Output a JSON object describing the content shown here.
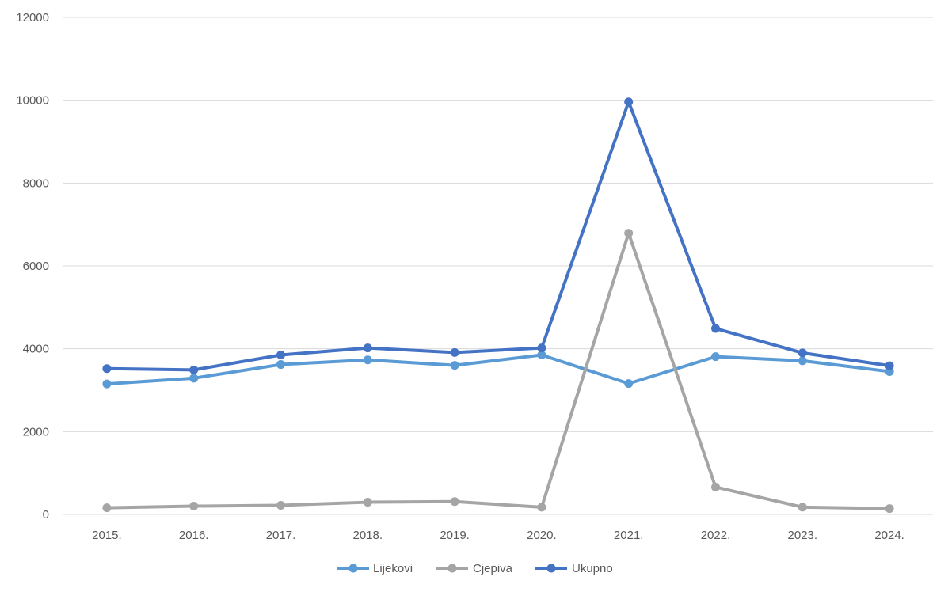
{
  "chart_data": {
    "type": "line",
    "categories": [
      "2015.",
      "2016.",
      "2017.",
      "2018.",
      "2019.",
      "2020.",
      "2021.",
      "2022.",
      "2023.",
      "2024."
    ],
    "series": [
      {
        "name": "Lijekovi",
        "color": "#5B9BD5",
        "values": [
          3150,
          3290,
          3620,
          3730,
          3600,
          3850,
          3160,
          3810,
          3710,
          3450
        ]
      },
      {
        "name": "Cjepiva",
        "color": "#A5A5A5",
        "values": [
          160,
          200,
          220,
          295,
          310,
          175,
          6790,
          660,
          175,
          140
        ]
      },
      {
        "name": "Ukupno",
        "color": "#4472C4",
        "values": [
          3520,
          3490,
          3850,
          4020,
          3910,
          4020,
          9960,
          4490,
          3900,
          3590
        ]
      }
    ],
    "ylim": [
      0,
      12000
    ],
    "yticks": [
      "0",
      "2000",
      "4000",
      "6000",
      "8000",
      "10000",
      "12000"
    ],
    "grid": true,
    "legend": "bottom"
  }
}
